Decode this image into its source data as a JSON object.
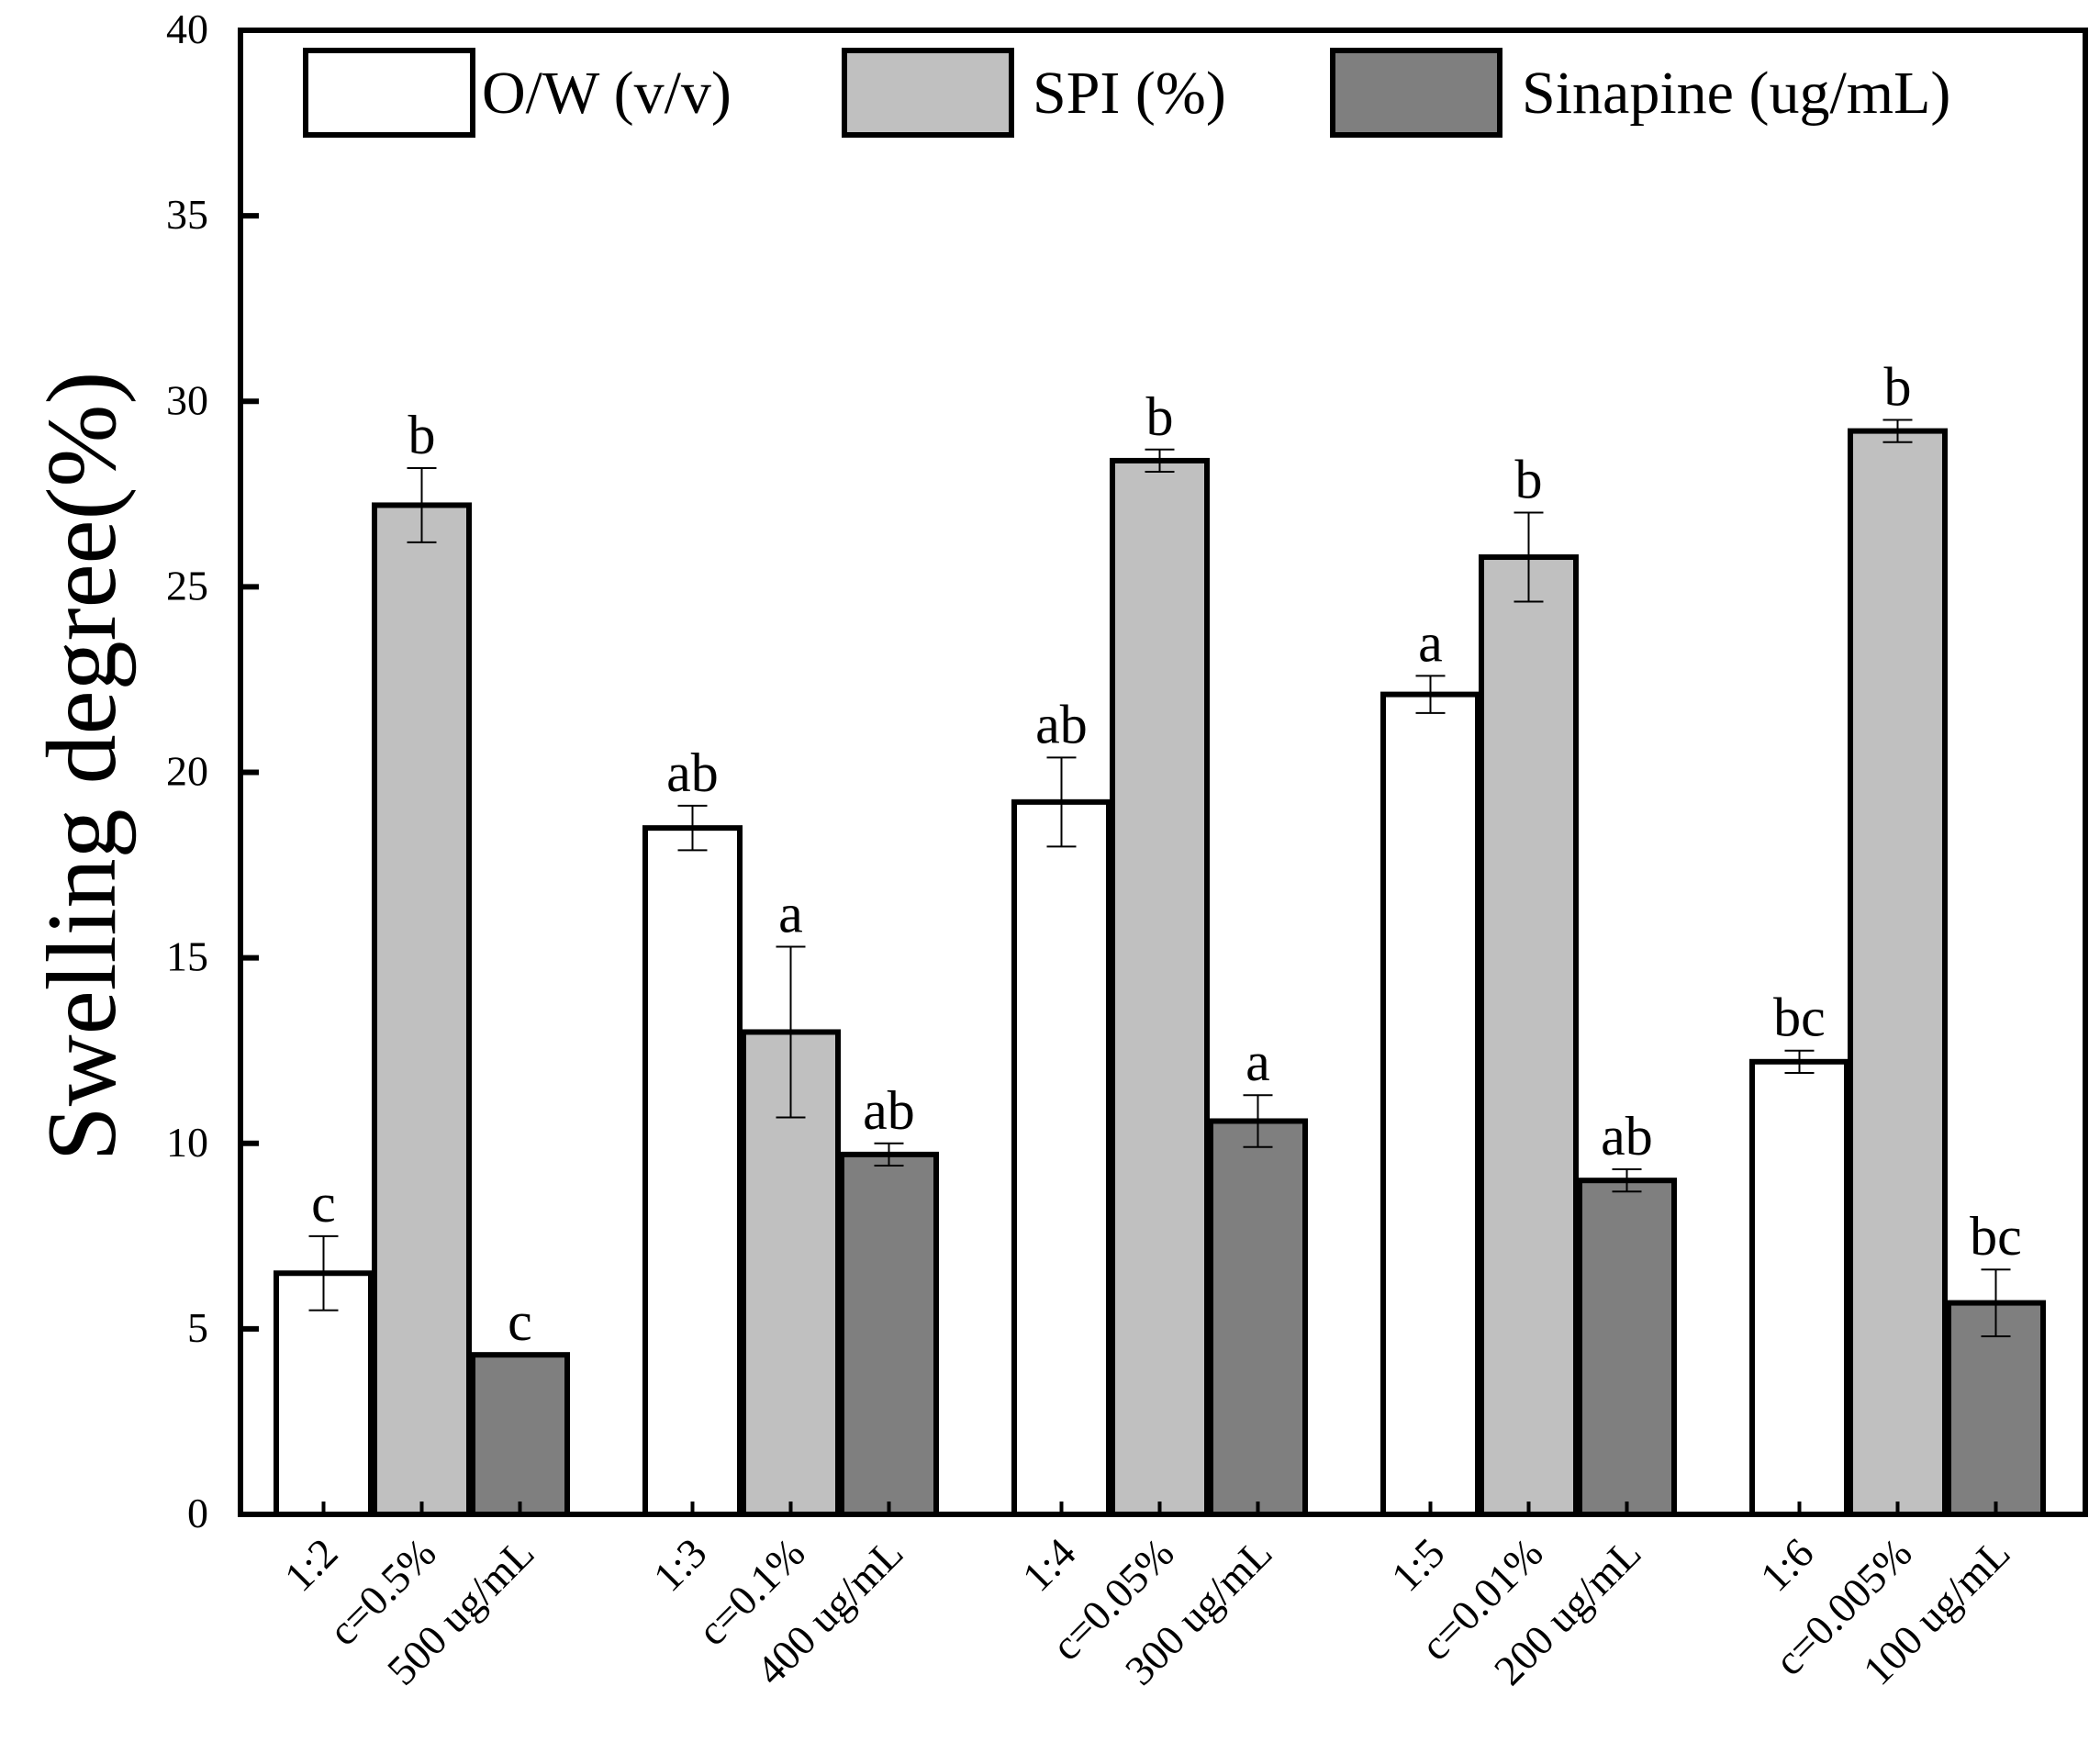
{
  "chart_data": {
    "type": "bar",
    "ylabel": "Swelling degree(%)",
    "ylim": [
      0,
      40
    ],
    "yticks": [
      0,
      5,
      10,
      15,
      20,
      25,
      30,
      35,
      40
    ],
    "grid": false,
    "legend_position": "top",
    "groups": [
      {
        "bars": [
          {
            "label": "1:2",
            "series": 0,
            "value": 6.5,
            "error": 1.0,
            "letter": "c"
          },
          {
            "label": "c=0.5%",
            "series": 1,
            "value": 27.2,
            "error": 1.0,
            "letter": "b"
          },
          {
            "label": "500 ug/mL",
            "series": 2,
            "value": 4.3,
            "error": 0.0,
            "letter": "c"
          }
        ]
      },
      {
        "bars": [
          {
            "label": "1:3",
            "series": 0,
            "value": 18.5,
            "error": 0.6,
            "letter": "ab"
          },
          {
            "label": "c=0.1%",
            "series": 1,
            "value": 13.0,
            "error": 2.3,
            "letter": "a"
          },
          {
            "label": "400 ug/mL",
            "series": 2,
            "value": 9.7,
            "error": 0.3,
            "letter": "ab"
          }
        ]
      },
      {
        "bars": [
          {
            "label": "1:4",
            "series": 0,
            "value": 19.2,
            "error": 1.2,
            "letter": "ab"
          },
          {
            "label": "c=0.05%",
            "series": 1,
            "value": 28.4,
            "error": 0.3,
            "letter": "b"
          },
          {
            "label": "300 ug/mL",
            "series": 2,
            "value": 10.6,
            "error": 0.7,
            "letter": "a"
          }
        ]
      },
      {
        "bars": [
          {
            "label": "1:5",
            "series": 0,
            "value": 22.1,
            "error": 0.5,
            "letter": "a"
          },
          {
            "label": "c=0.01%",
            "series": 1,
            "value": 25.8,
            "error": 1.2,
            "letter": "b"
          },
          {
            "label": "200 ug/mL",
            "series": 2,
            "value": 9.0,
            "error": 0.3,
            "letter": "ab"
          }
        ]
      },
      {
        "bars": [
          {
            "label": "1:6",
            "series": 0,
            "value": 12.2,
            "error": 0.3,
            "letter": "bc"
          },
          {
            "label": "c=0.005%",
            "series": 1,
            "value": 29.2,
            "error": 0.3,
            "letter": "b"
          },
          {
            "label": "100 ug/mL",
            "series": 2,
            "value": 5.7,
            "error": 0.9,
            "letter": "bc"
          }
        ]
      }
    ],
    "series": [
      {
        "name": "O/W (v/v)",
        "color": "#ffffff"
      },
      {
        "name": "SPI (%)",
        "color": "#c0c0c0"
      },
      {
        "name": "Sinapine (ug/mL)",
        "color": "#7f7f7f"
      }
    ]
  }
}
